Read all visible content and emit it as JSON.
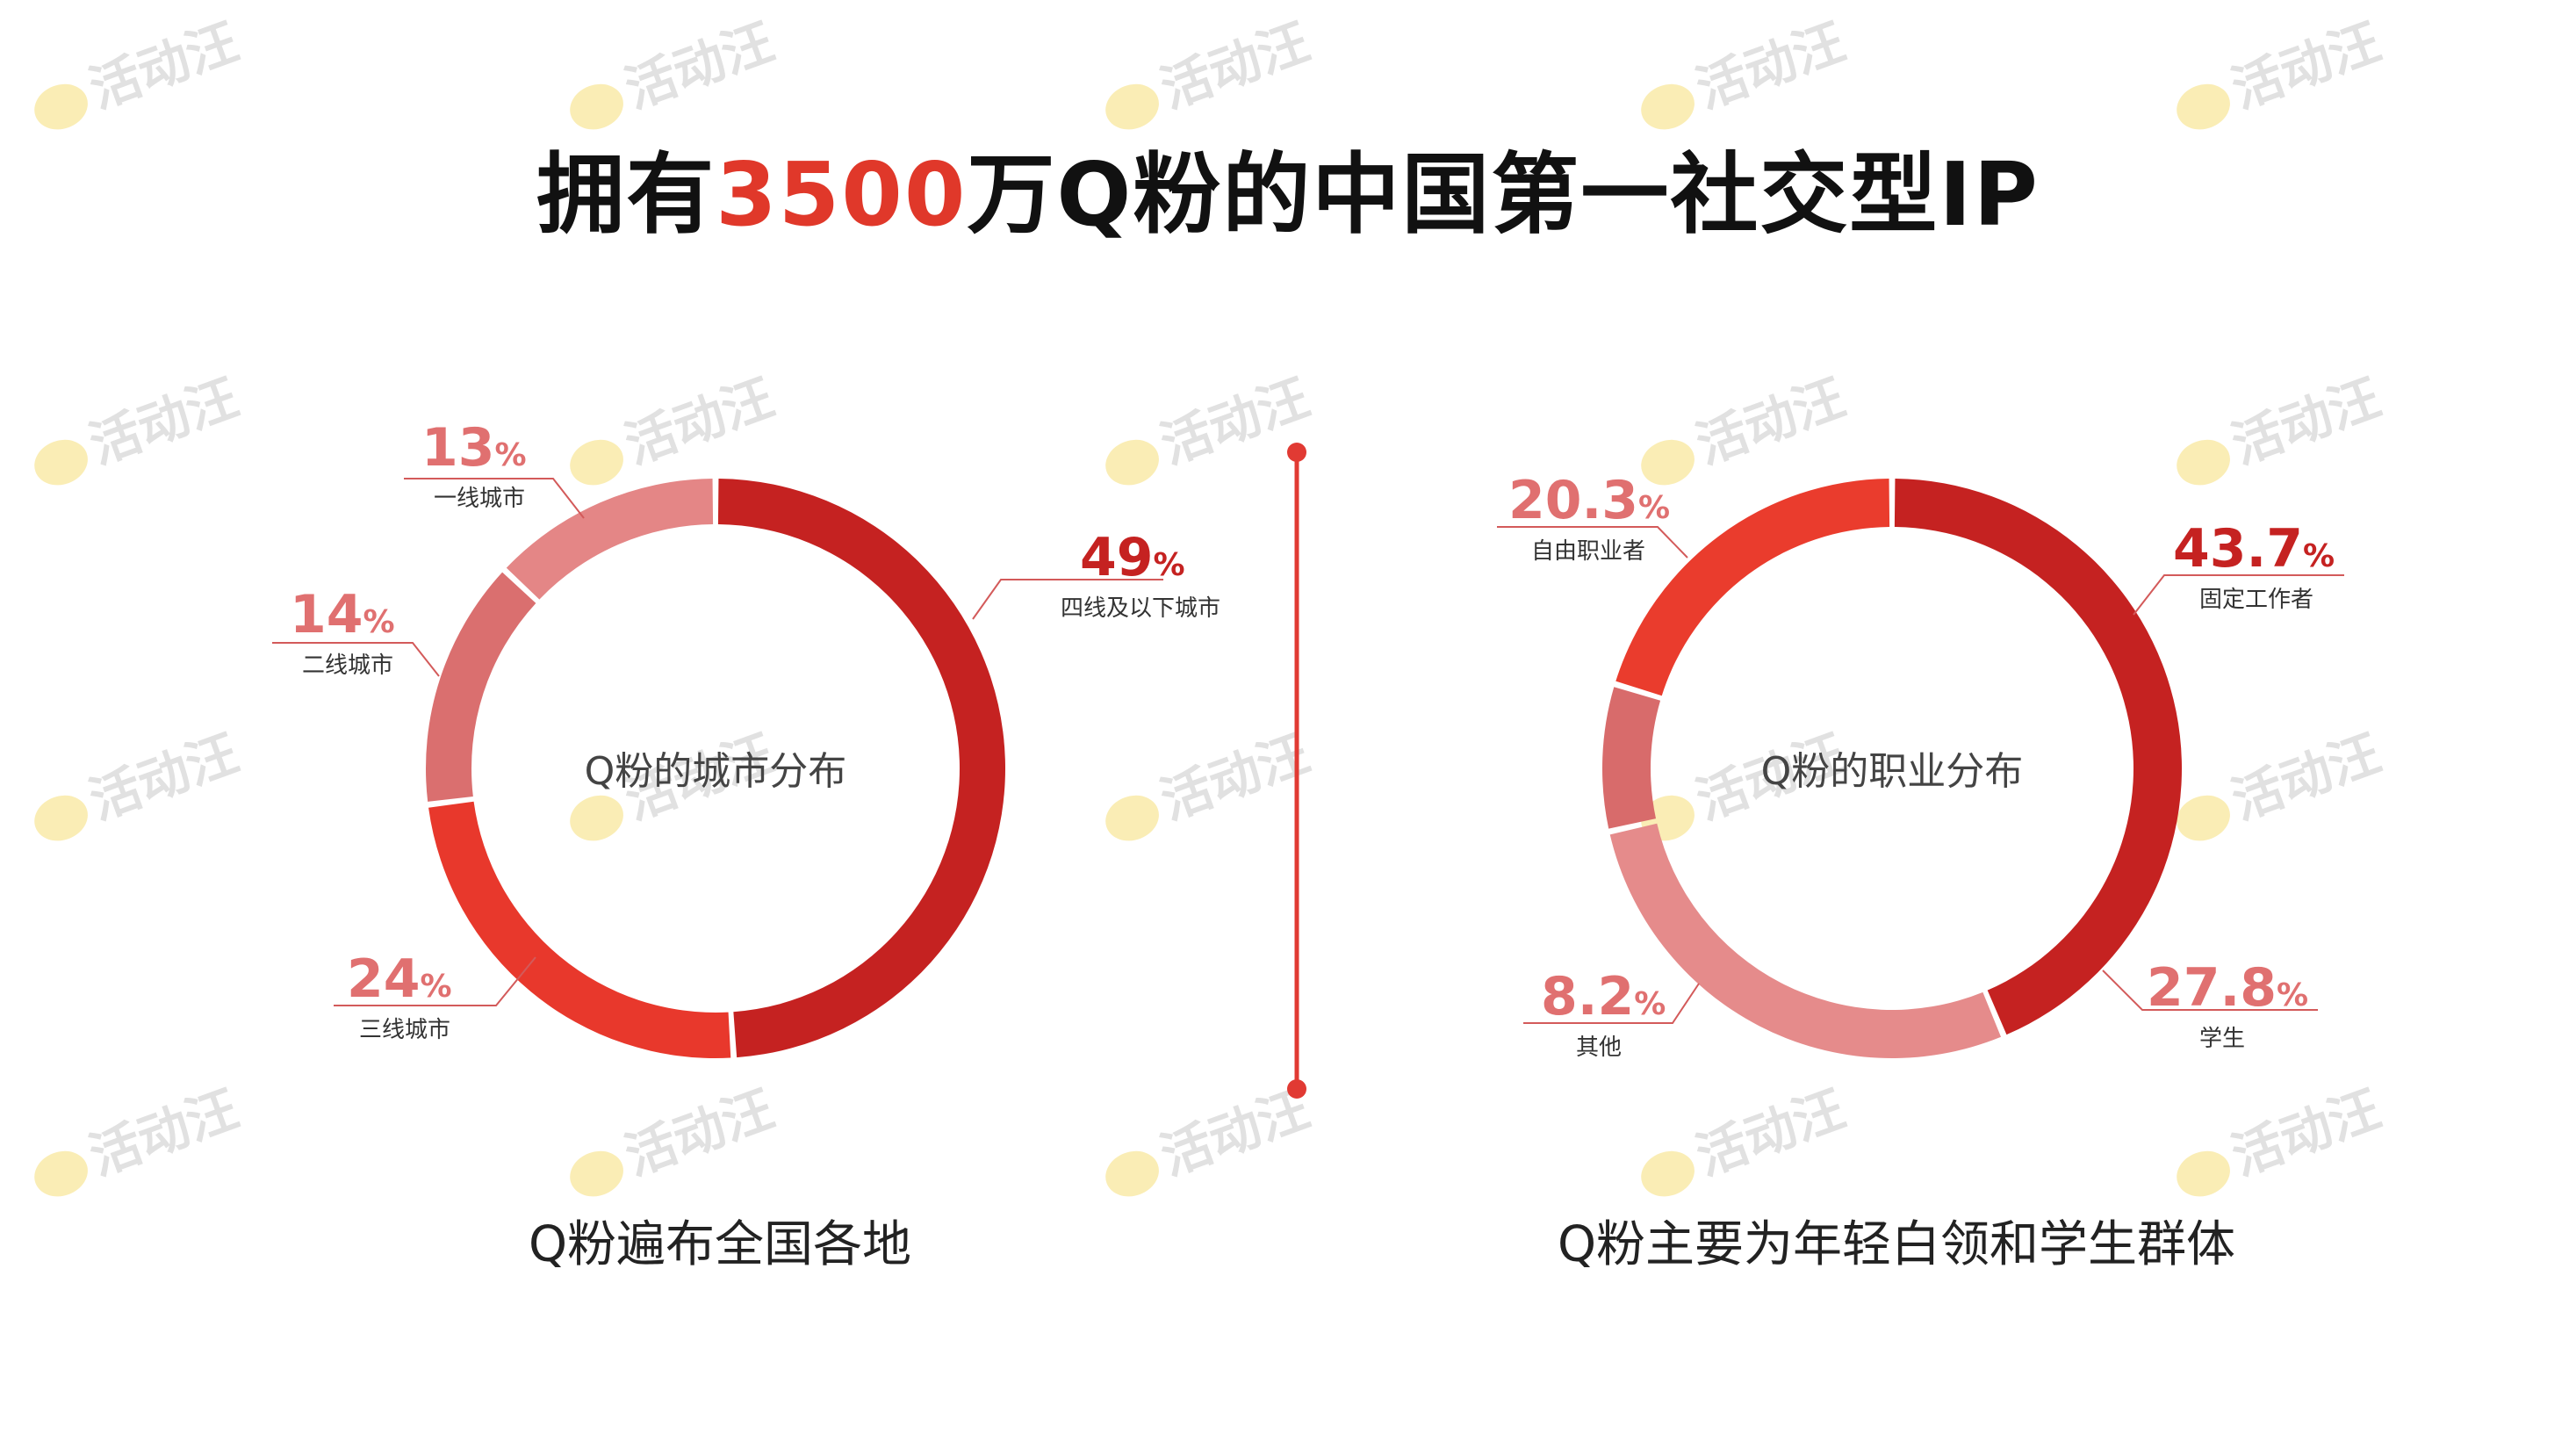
{
  "title": {
    "prefix": "拥有",
    "highlight": "3500",
    "suffix": "万Q粉的中国第一社交型IP"
  },
  "watermark": {
    "text": "活动汪",
    "icon": "bee-mascot-icon"
  },
  "colors": {
    "accent": "#e0382a",
    "divider": "#e13a33"
  },
  "chart_data": [
    {
      "type": "pie",
      "title": "Q粉的城市分布",
      "caption": "Q粉遍布全国各地",
      "series": [
        {
          "slices": [
            {
              "label": "四线及以下城市",
              "value": 49,
              "value_text": "49",
              "unit": "%",
              "color": "#c52221"
            },
            {
              "label": "三线城市",
              "value": 24,
              "value_text": "24",
              "unit": "%",
              "color": "#e8382c"
            },
            {
              "label": "二线城市",
              "value": 14,
              "value_text": "14",
              "unit": "%",
              "color": "#da6f6f"
            },
            {
              "label": "一线城市",
              "value": 13,
              "value_text": "13",
              "unit": "%",
              "color": "#e48686"
            }
          ]
        }
      ]
    },
    {
      "type": "pie",
      "title": "Q粉的职业分布",
      "caption": "Q粉主要为年轻白领和学生群体",
      "series": [
        {
          "slices": [
            {
              "label": "固定工作者",
              "value": 43.7,
              "value_text": "43.7",
              "unit": "%",
              "color": "#c52221"
            },
            {
              "label": "学生",
              "value": 27.8,
              "value_text": "27.8",
              "unit": "%",
              "color": "#e58b8b"
            },
            {
              "label": "其他",
              "value": 8.2,
              "value_text": "8.2",
              "unit": "%",
              "color": "#d86b6b"
            },
            {
              "label": "自由职业者",
              "value": 20.3,
              "value_text": "20.3",
              "unit": "%",
              "color": "#ea3c2d"
            }
          ]
        }
      ]
    }
  ]
}
